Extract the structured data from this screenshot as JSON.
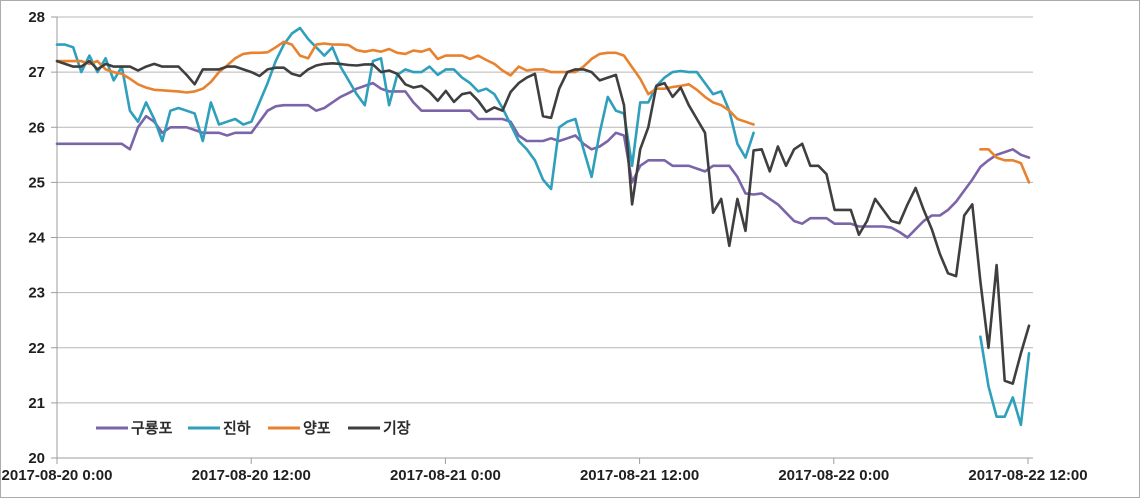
{
  "window": {
    "title": "Temperature time-series chart"
  },
  "chart_data": {
    "type": "line",
    "title": "",
    "xlabel": "",
    "ylabel": "",
    "ylim": [
      20,
      28
    ],
    "y_ticks": [
      20,
      21,
      22,
      23,
      24,
      25,
      26,
      27,
      28
    ],
    "x_tick_labels": [
      "2017-08-20 0:00",
      "2017-08-20 12:00",
      "2017-08-21 0:00",
      "2017-08-21 12:00",
      "2017-08-22 0:00",
      "2017-08-22 12:00"
    ],
    "x_interval": "30 minutes per point, from 2017-08-20 0:00 to 2017-08-22 12:00",
    "grid": "horizontal",
    "legend_position": "inside-bottom-left",
    "colors": {
      "grid": "#b7b7b7",
      "axis": "#9d9d9d",
      "tick_text": "#1f1f1f",
      "background": "#ffffff",
      "frame": "#ababab"
    },
    "series": [
      {
        "name": "구룡포",
        "color": "#7c64a8",
        "values": [
          25.7,
          25.7,
          25.7,
          25.7,
          25.7,
          25.7,
          25.7,
          25.7,
          25.7,
          25.6,
          26.0,
          26.2,
          26.1,
          25.9,
          26.0,
          26.0,
          26.0,
          25.95,
          25.9,
          25.9,
          25.9,
          25.85,
          25.9,
          25.9,
          25.9,
          26.1,
          26.3,
          26.38,
          26.4,
          26.4,
          26.4,
          26.4,
          26.3,
          26.35,
          26.45,
          26.55,
          26.62,
          26.7,
          26.75,
          26.8,
          26.7,
          26.65,
          26.65,
          26.65,
          26.45,
          26.3,
          26.3,
          26.3,
          26.3,
          26.3,
          26.3,
          26.3,
          26.15,
          26.15,
          26.15,
          26.15,
          26.1,
          25.85,
          25.75,
          25.75,
          25.75,
          25.8,
          25.75,
          25.8,
          25.85,
          25.7,
          25.6,
          25.65,
          25.75,
          25.9,
          25.85,
          25.0,
          25.3,
          25.4,
          25.4,
          25.4,
          25.3,
          25.3,
          25.3,
          25.25,
          25.2,
          25.3,
          25.3,
          25.3,
          25.1,
          24.8,
          24.78,
          24.8,
          24.7,
          24.6,
          24.45,
          24.3,
          24.25,
          24.35,
          24.35,
          24.35,
          24.25,
          24.25,
          24.25,
          24.2,
          24.2,
          24.2,
          24.2,
          24.18,
          24.1,
          24.0,
          24.15,
          24.3,
          24.4,
          24.4,
          24.5,
          24.65,
          24.85,
          25.05,
          25.28,
          25.4,
          25.5,
          25.55,
          25.6,
          25.5,
          25.45
        ]
      },
      {
        "name": "진하",
        "color": "#2f9fbc",
        "values": [
          27.5,
          27.5,
          27.45,
          27.0,
          27.3,
          27.0,
          27.25,
          26.85,
          27.1,
          26.3,
          26.1,
          26.45,
          26.15,
          25.75,
          26.3,
          26.35,
          26.3,
          26.25,
          25.75,
          26.45,
          26.05,
          26.1,
          26.15,
          26.05,
          26.1,
          26.45,
          26.8,
          27.2,
          27.5,
          27.7,
          27.8,
          27.6,
          27.45,
          27.3,
          27.45,
          27.1,
          26.85,
          26.6,
          26.4,
          27.2,
          27.25,
          26.4,
          26.95,
          27.05,
          27.0,
          27.0,
          27.1,
          26.95,
          27.05,
          27.05,
          26.9,
          26.8,
          26.65,
          26.7,
          26.6,
          26.35,
          26.05,
          25.75,
          25.6,
          25.4,
          25.05,
          24.88,
          26.0,
          26.1,
          26.15,
          25.6,
          25.1,
          25.9,
          26.55,
          26.3,
          26.25,
          25.3,
          26.45,
          26.45,
          26.75,
          26.9,
          27.0,
          27.02,
          27.0,
          27.0,
          26.8,
          26.6,
          26.65,
          26.3,
          25.7,
          25.45,
          25.9,
          null,
          null,
          null,
          null,
          null,
          null,
          null,
          null,
          null,
          null,
          null,
          null,
          null,
          null,
          null,
          null,
          null,
          null,
          null,
          null,
          null,
          null,
          null,
          null,
          null,
          null,
          null,
          22.2,
          21.3,
          20.75,
          20.75,
          21.1,
          20.6,
          21.9
        ]
      },
      {
        "name": "양포",
        "color": "#e8822e",
        "values": [
          27.2,
          27.2,
          27.2,
          27.2,
          27.15,
          27.2,
          27.05,
          27.0,
          26.97,
          26.88,
          26.78,
          26.72,
          26.68,
          26.67,
          26.66,
          26.65,
          26.63,
          26.65,
          26.7,
          26.82,
          27.0,
          27.12,
          27.25,
          27.33,
          27.35,
          27.35,
          27.36,
          27.45,
          27.55,
          27.5,
          27.3,
          27.25,
          27.5,
          27.52,
          27.5,
          27.5,
          27.49,
          27.4,
          27.37,
          27.4,
          27.37,
          27.42,
          27.35,
          27.33,
          27.39,
          27.37,
          27.42,
          27.24,
          27.3,
          27.3,
          27.3,
          27.24,
          27.3,
          27.22,
          27.15,
          27.03,
          26.94,
          27.1,
          27.03,
          27.05,
          27.05,
          27.0,
          27.0,
          27.0,
          27.0,
          27.1,
          27.24,
          27.33,
          27.35,
          27.35,
          27.3,
          27.09,
          26.88,
          26.6,
          26.7,
          26.7,
          26.73,
          26.75,
          26.78,
          26.68,
          26.55,
          26.45,
          26.4,
          26.3,
          26.15,
          26.1,
          26.05,
          null,
          null,
          null,
          null,
          null,
          null,
          null,
          null,
          null,
          null,
          null,
          null,
          null,
          null,
          null,
          null,
          null,
          null,
          null,
          null,
          null,
          null,
          null,
          null,
          null,
          null,
          null,
          25.6,
          25.6,
          25.45,
          25.4,
          25.4,
          25.35,
          25.0
        ]
      },
      {
        "name": "기장",
        "color": "#3f3f3f",
        "values": [
          27.2,
          27.15,
          27.1,
          27.1,
          27.2,
          27.05,
          27.15,
          27.1,
          27.1,
          27.1,
          27.03,
          27.1,
          27.15,
          27.1,
          27.1,
          27.1,
          26.95,
          26.78,
          27.05,
          27.05,
          27.05,
          27.1,
          27.1,
          27.05,
          27.0,
          26.93,
          27.05,
          27.08,
          27.08,
          26.97,
          26.93,
          27.05,
          27.12,
          27.15,
          27.16,
          27.15,
          27.13,
          27.12,
          27.14,
          27.14,
          27.0,
          27.03,
          26.97,
          26.78,
          26.72,
          26.75,
          26.64,
          26.48,
          26.66,
          26.46,
          26.6,
          26.63,
          26.48,
          26.28,
          26.36,
          26.3,
          26.64,
          26.8,
          26.9,
          26.97,
          26.2,
          26.17,
          26.7,
          27.0,
          27.05,
          27.05,
          27.0,
          26.85,
          26.9,
          26.95,
          26.4,
          24.6,
          25.6,
          26.0,
          26.75,
          26.8,
          26.55,
          26.72,
          26.4,
          26.15,
          25.9,
          24.45,
          24.7,
          23.85,
          24.7,
          24.12,
          25.58,
          25.6,
          25.2,
          25.65,
          25.3,
          25.6,
          25.7,
          25.3,
          25.3,
          25.15,
          24.5,
          24.5,
          24.5,
          24.05,
          24.3,
          24.7,
          24.5,
          24.3,
          24.26,
          24.6,
          24.9,
          24.5,
          24.15,
          23.7,
          23.35,
          23.3,
          24.4,
          24.6,
          23.2,
          22.0,
          23.5,
          21.4,
          21.35,
          21.9,
          22.4
        ]
      }
    ],
    "legend_items": [
      "구룡포",
      "진하",
      "양포",
      "기장"
    ]
  }
}
